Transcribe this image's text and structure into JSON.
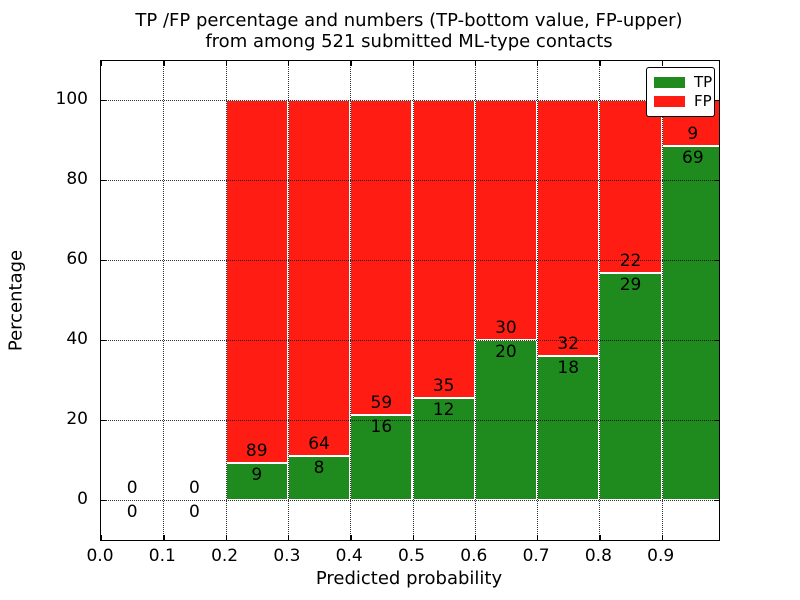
{
  "title": {
    "line1": "TP /FP percentage and numbers (TP-bottom value, FP-upper)",
    "line2": "from among 521 submitted ML-type contacts"
  },
  "axes": {
    "x_label": "Predicted probability",
    "y_label": "Percentage",
    "x_tick_labels": [
      "0.0",
      "0.1",
      "0.2",
      "0.3",
      "0.4",
      "0.5",
      "0.6",
      "0.7",
      "0.8",
      "0.9"
    ],
    "x_tick_values": [
      0.0,
      0.1,
      0.2,
      0.3,
      0.4,
      0.5,
      0.6,
      0.7,
      0.8,
      0.9
    ],
    "y_tick_labels": [
      "0",
      "20",
      "40",
      "60",
      "80",
      "100"
    ],
    "y_tick_values": [
      0,
      20,
      40,
      60,
      80,
      100
    ],
    "x_range": [
      0.0,
      0.993
    ],
    "y_range": [
      -10,
      110
    ],
    "grid": "dotted"
  },
  "legend": {
    "position": "upper right",
    "entries": [
      {
        "label": "TP",
        "color": "#1f8b1f"
      },
      {
        "label": "FP",
        "color": "#ff1c13"
      }
    ]
  },
  "colors": {
    "tp": "#1f8b1f",
    "fp": "#ff1c13",
    "bar_edge": "#ffffff",
    "grid": "#000000",
    "text": "#000000"
  },
  "chart_data": {
    "type": "bar",
    "stacked": true,
    "normalized_to_percent": true,
    "title": "TP /FP percentage and numbers (TP-bottom value, FP-upper) from among 521 submitted ML-type contacts",
    "xlabel": "Predicted probability",
    "ylabel": "Percentage",
    "total_contacts": 521,
    "bin_width": 0.1,
    "bin_starts": [
      0.0,
      0.1,
      0.2,
      0.3,
      0.4,
      0.5,
      0.6,
      0.7,
      0.8,
      0.9
    ],
    "series": [
      {
        "name": "TP",
        "counts": [
          0,
          0,
          9,
          8,
          16,
          12,
          20,
          18,
          29,
          69
        ]
      },
      {
        "name": "FP",
        "counts": [
          0,
          0,
          89,
          64,
          59,
          35,
          30,
          32,
          22,
          9
        ]
      }
    ],
    "tp_percent_heights": [
      0,
      0,
      9.18,
      11.11,
      21.33,
      25.53,
      40.0,
      36.0,
      56.86,
      88.46
    ]
  }
}
